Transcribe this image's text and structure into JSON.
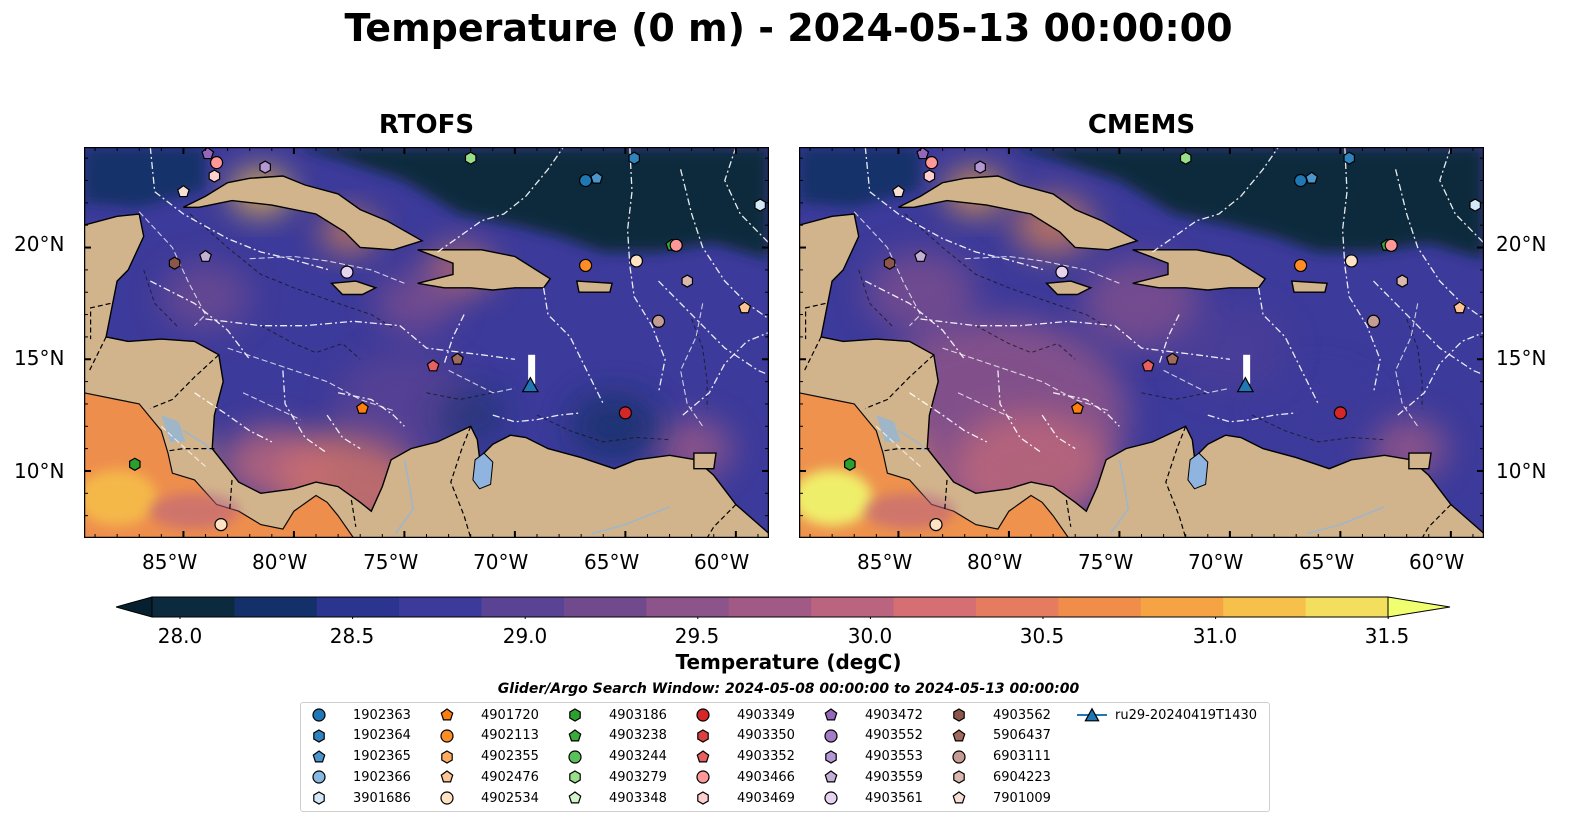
{
  "figure": {
    "title": "Temperature (0 m) - 2024-05-13 00:00:00",
    "panels": [
      {
        "title": "RTOFS",
        "variant": "rtofs"
      },
      {
        "title": "CMEMS",
        "variant": "cmems"
      }
    ],
    "lon_ticks": [
      "85°W",
      "80°W",
      "75°W",
      "70°W",
      "65°W",
      "60°W"
    ],
    "lat_ticks": [
      "20°N",
      "15°N",
      "10°N"
    ],
    "map_extent": {
      "lon": [
        -89.5,
        -58.5
      ],
      "lat": [
        7,
        24.5
      ]
    },
    "colors": {
      "land": "#d2b48c",
      "lake": "#8fb4e0",
      "coast": "#000000",
      "eez_lines": "#ffffff"
    }
  },
  "colorbar": {
    "label": "Temperature (degC)",
    "range": [
      28.0,
      31.5
    ],
    "ticks": [
      "28.0",
      "28.5",
      "29.0",
      "29.5",
      "30.0",
      "30.5",
      "31.0",
      "31.5"
    ],
    "colors": [
      "#0c2a3d",
      "#14306a",
      "#2b3590",
      "#3c3a9a",
      "#5a4394",
      "#714a8e",
      "#8c548a",
      "#a15a86",
      "#bb6480",
      "#d46f73",
      "#e57c5f",
      "#f08d4a",
      "#f6a443",
      "#f6c04a",
      "#f3de5d"
    ],
    "extend_min_color": "#07202f",
    "extend_max_color": "#f0ff70"
  },
  "search_window": "Glider/Argo Search Window: 2024-05-08 00:00:00 to 2024-05-13 00:00:00",
  "legend": [
    {
      "id": "1902363",
      "marker": "circle",
      "color": "#1f77b4"
    },
    {
      "id": "1902364",
      "marker": "hexagon",
      "color": "#2f84be"
    },
    {
      "id": "1902365",
      "marker": "pentagon",
      "color": "#4a96cc"
    },
    {
      "id": "1902366",
      "marker": "circle",
      "color": "#86b8e2"
    },
    {
      "id": "3901686",
      "marker": "hexagon",
      "color": "#d5e8f7"
    },
    {
      "id": "4901720",
      "marker": "pentagon",
      "color": "#ff7f0e"
    },
    {
      "id": "4902113",
      "marker": "circle",
      "color": "#ff8c25"
    },
    {
      "id": "4902355",
      "marker": "hexagon",
      "color": "#ffac5e"
    },
    {
      "id": "4902476",
      "marker": "pentagon",
      "color": "#ffc494"
    },
    {
      "id": "4902534",
      "marker": "circle",
      "color": "#ffe1c4"
    },
    {
      "id": "4903186",
      "marker": "hexagon",
      "color": "#2ca02c"
    },
    {
      "id": "4903238",
      "marker": "pentagon",
      "color": "#3aab3a"
    },
    {
      "id": "4903244",
      "marker": "circle",
      "color": "#5bc05b"
    },
    {
      "id": "4903279",
      "marker": "hexagon",
      "color": "#98df8a"
    },
    {
      "id": "4903348",
      "marker": "pentagon",
      "color": "#d4f5cc"
    },
    {
      "id": "4903349",
      "marker": "circle",
      "color": "#d62728"
    },
    {
      "id": "4903350",
      "marker": "hexagon",
      "color": "#dc3f3f"
    },
    {
      "id": "4903352",
      "marker": "pentagon",
      "color": "#e86060"
    },
    {
      "id": "4903466",
      "marker": "circle",
      "color": "#ff9896"
    },
    {
      "id": "4903469",
      "marker": "hexagon",
      "color": "#ffd0cf"
    },
    {
      "id": "4903472",
      "marker": "pentagon",
      "color": "#9467bd"
    },
    {
      "id": "4903552",
      "marker": "circle",
      "color": "#a27cc7"
    },
    {
      "id": "4903553",
      "marker": "hexagon",
      "color": "#b497d3"
    },
    {
      "id": "4903559",
      "marker": "pentagon",
      "color": "#c5b0d5"
    },
    {
      "id": "4903561",
      "marker": "circle",
      "color": "#e6d3f0"
    },
    {
      "id": "4903562",
      "marker": "hexagon",
      "color": "#8c564b"
    },
    {
      "id": "5906437",
      "marker": "pentagon",
      "color": "#a06a5c"
    },
    {
      "id": "6903111",
      "marker": "circle",
      "color": "#c49c94"
    },
    {
      "id": "6904223",
      "marker": "hexagon",
      "color": "#dbb8ad"
    },
    {
      "id": "7901009",
      "marker": "pentagon",
      "color": "#f6e0d6"
    },
    {
      "id": "ru29-20240419T1430",
      "marker": "triangle-line",
      "color": "#1f77b4"
    }
  ],
  "map_markers": [
    {
      "id": "1902363",
      "lon": -66.8,
      "lat": 23.0
    },
    {
      "id": "1902364",
      "lon": -64.6,
      "lat": 24.0
    },
    {
      "id": "1902365",
      "lon": -66.3,
      "lat": 23.1
    },
    {
      "id": "3901686",
      "lon": -58.9,
      "lat": 21.9
    },
    {
      "id": "4902113",
      "lon": -66.8,
      "lat": 19.2
    },
    {
      "id": "4902534",
      "lon": -64.5,
      "lat": 19.4
    },
    {
      "id": "4903238",
      "lon": -62.9,
      "lat": 20.1
    },
    {
      "id": "4903466",
      "lon": -62.7,
      "lat": 20.1
    },
    {
      "id": "4903279",
      "lon": -72.0,
      "lat": 24.0
    },
    {
      "id": "4903349",
      "lon": -65.0,
      "lat": 12.6
    },
    {
      "id": "4903352",
      "lon": -73.7,
      "lat": 14.7
    },
    {
      "id": "5906437",
      "lon": -72.6,
      "lat": 15.0
    },
    {
      "id": "4901720",
      "lon": -76.9,
      "lat": 12.8
    },
    {
      "id": "4903561",
      "lon": -77.6,
      "lat": 18.9
    },
    {
      "id": "4903559",
      "lon": -84.0,
      "lat": 19.6
    },
    {
      "id": "4903562",
      "lon": -85.4,
      "lat": 19.3
    },
    {
      "id": "6903111",
      "lon": -63.5,
      "lat": 16.7
    },
    {
      "id": "6904223",
      "lon": -62.2,
      "lat": 18.5
    },
    {
      "id": "4902476",
      "lon": -59.6,
      "lat": 17.3
    },
    {
      "id": "7901009",
      "lon": -85.0,
      "lat": 22.5
    },
    {
      "id": "4903186",
      "lon": -87.2,
      "lat": 10.3
    },
    {
      "id": "4902534",
      "lon": -83.3,
      "lat": 7.6
    },
    {
      "id": "4903466",
      "lon": -83.5,
      "lat": 23.8
    },
    {
      "id": "4903469",
      "lon": -83.6,
      "lat": 23.2
    },
    {
      "id": "4903472",
      "lon": -83.9,
      "lat": 24.2
    },
    {
      "id": "4903553",
      "lon": -81.3,
      "lat": 23.6
    },
    {
      "id": "ru29-20240419T1430",
      "lon": -69.3,
      "lat": 13.8
    }
  ]
}
